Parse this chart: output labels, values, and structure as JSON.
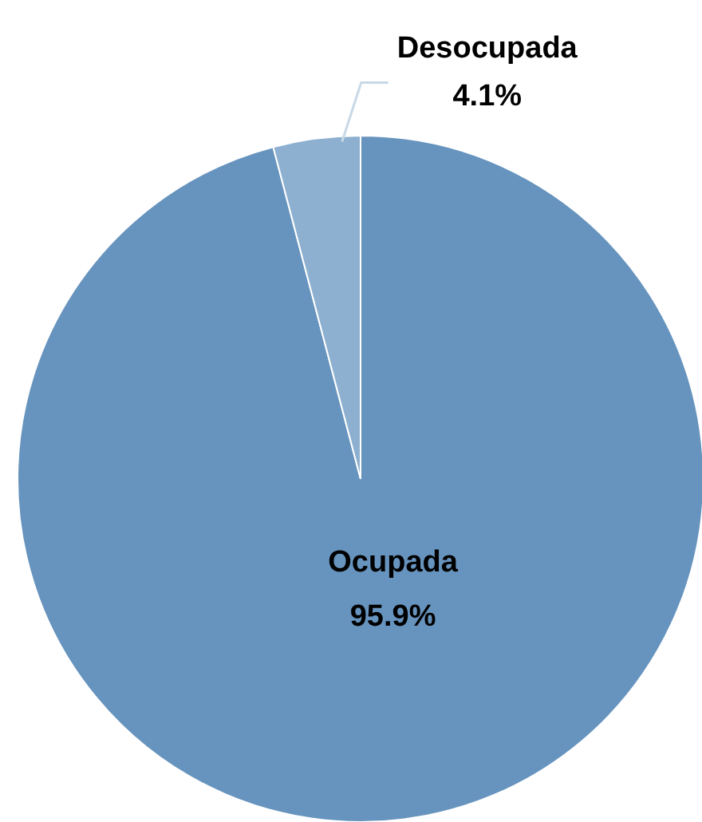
{
  "chart_data": {
    "type": "pie",
    "categories": [
      "Ocupada",
      "Desocupada"
    ],
    "values": [
      95.9,
      4.1
    ],
    "colors": [
      "#6794be",
      "#8db0d0"
    ],
    "value_labels": [
      "95.9%",
      "4.1%"
    ]
  }
}
